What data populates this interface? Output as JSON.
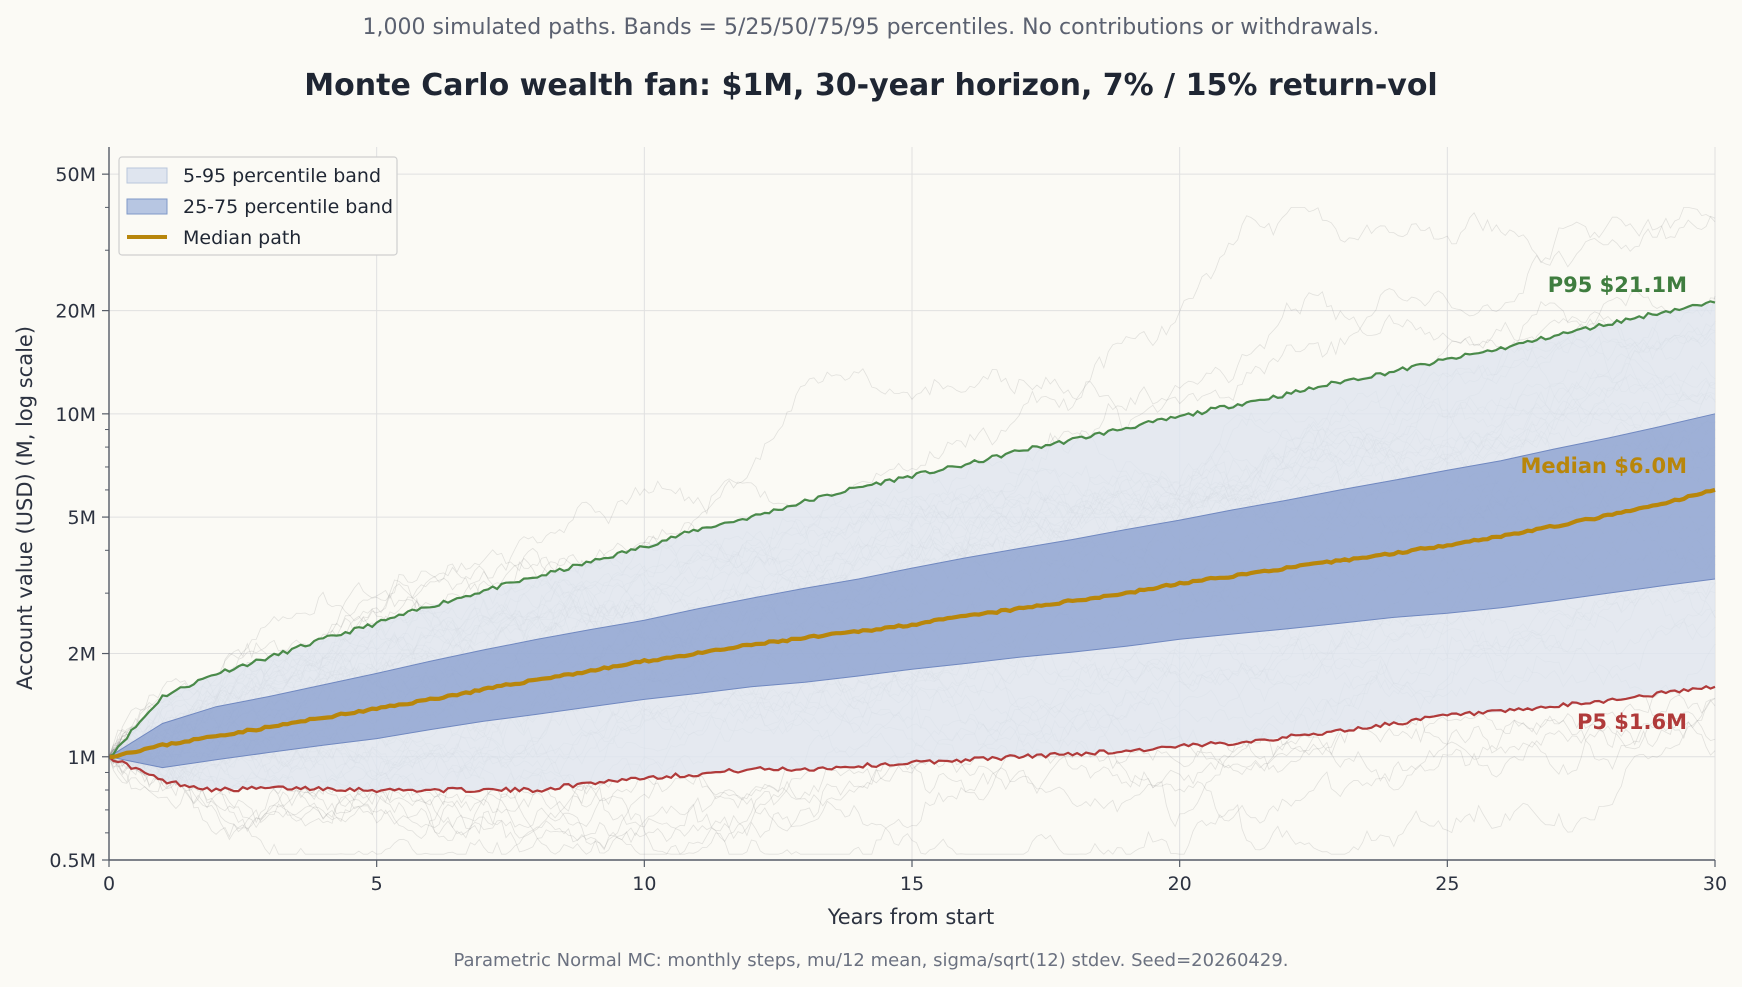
{
  "chart_data": {
    "type": "area",
    "subtitle": "1,000 simulated paths. Bands = 5/25/50/75/95 percentiles. No contributions or withdrawals.",
    "title": "Monte Carlo wealth fan: $1M, 30-year horizon, 7% / 15% return-vol",
    "xlabel": "Years from start",
    "ylabel": "Account value (USD) (M, log scale)",
    "footnote": "Parametric Normal MC: monthly steps, mu/12 mean, sigma/sqrt(12) stdev. Seed=20260429.",
    "xlim": [
      0,
      30
    ],
    "ylim": [
      0.5,
      60
    ],
    "y_scale": "log",
    "grid": true,
    "legend_position": "top-left",
    "x_ticks": [
      {
        "value": 0,
        "label": "0"
      },
      {
        "value": 5,
        "label": "5"
      },
      {
        "value": 10,
        "label": "10"
      },
      {
        "value": 15,
        "label": "15"
      },
      {
        "value": 20,
        "label": "20"
      },
      {
        "value": 25,
        "label": "25"
      },
      {
        "value": 30,
        "label": "30"
      }
    ],
    "y_ticks": [
      {
        "value": 0.5,
        "label": "0.5M"
      },
      {
        "value": 1,
        "label": "1M"
      },
      {
        "value": 2,
        "label": "2M"
      },
      {
        "value": 5,
        "label": "5M"
      },
      {
        "value": 10,
        "label": "10M"
      },
      {
        "value": 20,
        "label": "20M"
      },
      {
        "value": 50,
        "label": "50M"
      }
    ],
    "x": [
      0,
      1,
      2,
      3,
      4,
      5,
      6,
      7,
      8,
      9,
      10,
      11,
      12,
      13,
      14,
      15,
      16,
      17,
      18,
      19,
      20,
      21,
      22,
      23,
      24,
      25,
      26,
      27,
      28,
      29,
      30
    ],
    "series": [
      {
        "name": "P95",
        "color": "#4a8a4a",
        "values": [
          1.0,
          1.5,
          1.75,
          1.95,
          2.2,
          2.45,
          2.75,
          3.05,
          3.35,
          3.7,
          4.1,
          4.6,
          5.0,
          5.55,
          6.1,
          6.6,
          7.1,
          7.8,
          8.4,
          9.1,
          9.8,
          10.6,
          11.4,
          12.4,
          13.3,
          14.4,
          15.5,
          16.9,
          18.3,
          19.8,
          21.1
        ]
      },
      {
        "name": "P75",
        "color": "#7f98c8",
        "values": [
          1.0,
          1.25,
          1.4,
          1.5,
          1.62,
          1.75,
          1.9,
          2.05,
          2.2,
          2.35,
          2.5,
          2.7,
          2.9,
          3.1,
          3.3,
          3.55,
          3.8,
          4.05,
          4.3,
          4.6,
          4.9,
          5.25,
          5.6,
          6.0,
          6.4,
          6.85,
          7.3,
          7.9,
          8.5,
          9.2,
          10.0
        ]
      },
      {
        "name": "Median",
        "color": "#b8860b",
        "values": [
          1.0,
          1.08,
          1.15,
          1.22,
          1.3,
          1.38,
          1.47,
          1.57,
          1.68,
          1.78,
          1.9,
          2.0,
          2.12,
          2.22,
          2.32,
          2.43,
          2.57,
          2.7,
          2.85,
          3.0,
          3.2,
          3.37,
          3.55,
          3.73,
          3.92,
          4.15,
          4.4,
          4.7,
          5.05,
          5.45,
          6.0
        ]
      },
      {
        "name": "P25",
        "color": "#7f98c8",
        "values": [
          1.0,
          0.93,
          0.98,
          1.03,
          1.08,
          1.13,
          1.2,
          1.27,
          1.33,
          1.4,
          1.47,
          1.53,
          1.6,
          1.65,
          1.72,
          1.8,
          1.87,
          1.95,
          2.02,
          2.1,
          2.2,
          2.28,
          2.36,
          2.45,
          2.55,
          2.62,
          2.72,
          2.85,
          3.0,
          3.15,
          3.3
        ]
      },
      {
        "name": "P5",
        "color": "#b03a3a",
        "values": [
          1.0,
          0.85,
          0.8,
          0.81,
          0.81,
          0.8,
          0.8,
          0.8,
          0.8,
          0.84,
          0.87,
          0.89,
          0.92,
          0.92,
          0.94,
          0.96,
          0.98,
          1.0,
          1.02,
          1.04,
          1.07,
          1.1,
          1.14,
          1.19,
          1.25,
          1.32,
          1.35,
          1.4,
          1.46,
          1.53,
          1.6
        ]
      }
    ],
    "legend": {
      "outer_band": "5-95 percentile band",
      "inner_band": "25-75 percentile band",
      "median": "Median path"
    },
    "annotations": {
      "p95": "P95 $21.1M",
      "median": "Median $6.0M",
      "p5": "P5 $1.6M"
    },
    "colors": {
      "outer_band": "#dfe5ef",
      "inner_band": "#8aa0cf",
      "median": "#b8860b",
      "p95": "#4a8a4a",
      "p5": "#b03a3a",
      "background_paths": "#8a8a8a"
    }
  }
}
